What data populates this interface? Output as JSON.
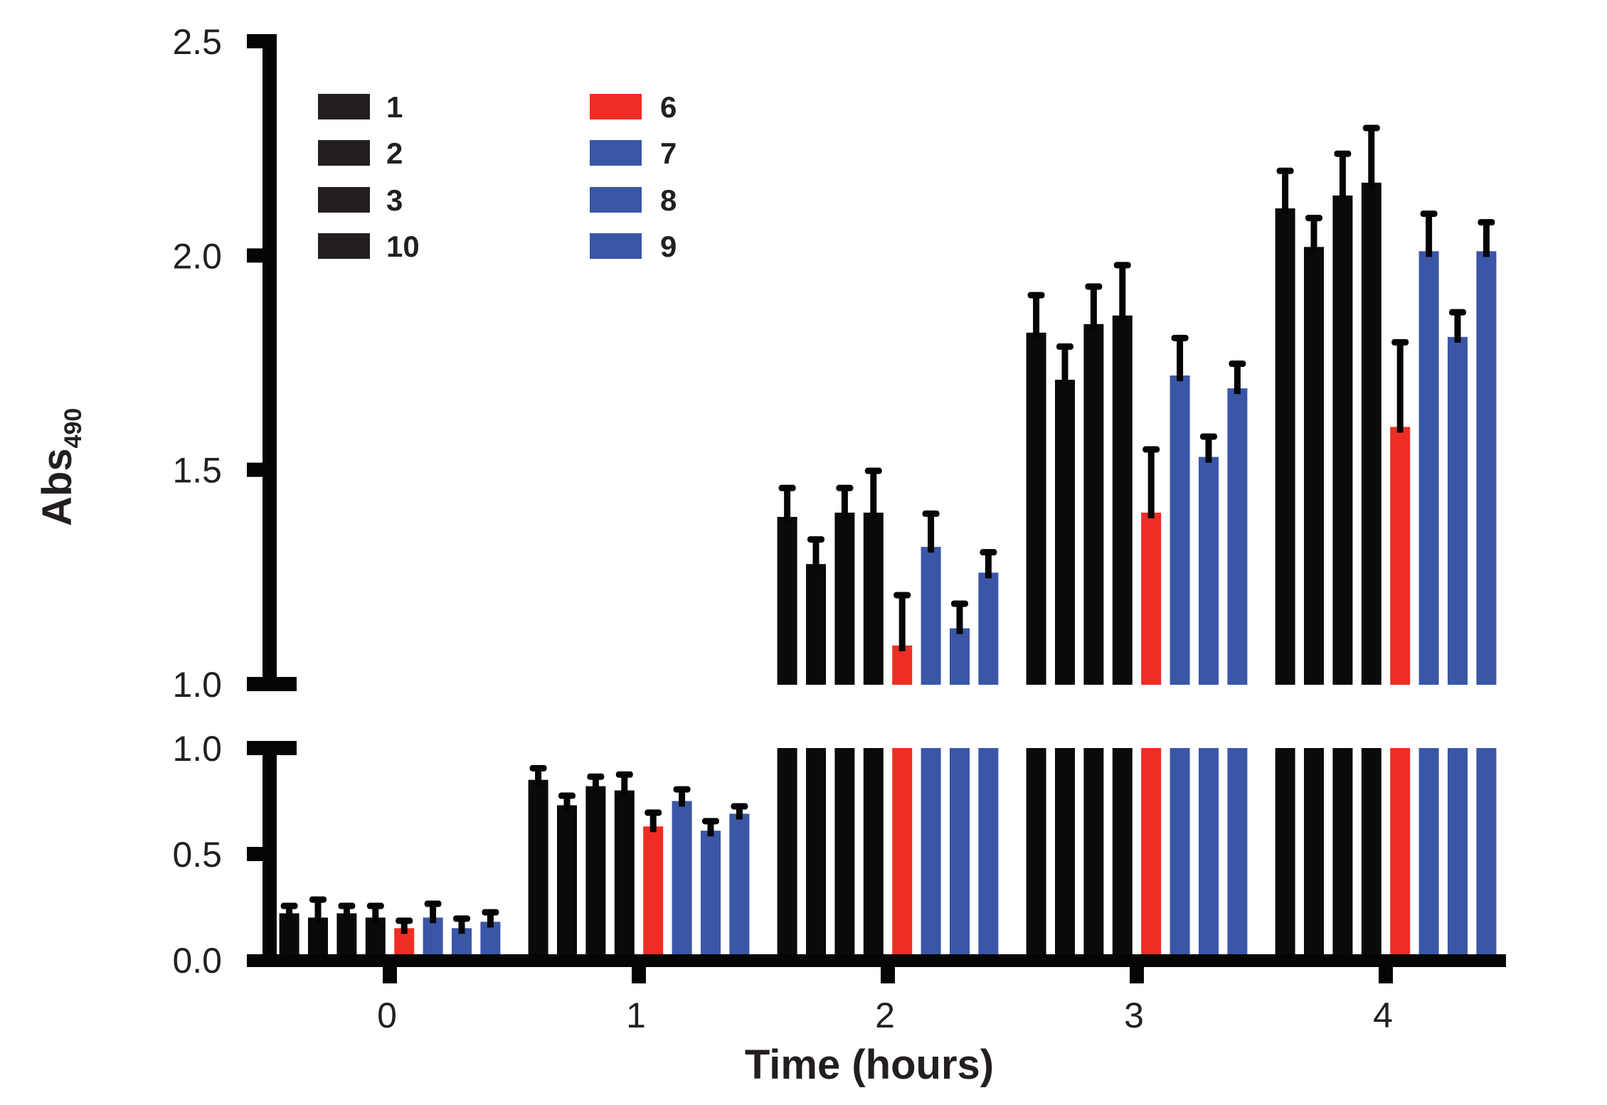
{
  "chart_data": {
    "type": "bar",
    "title": "",
    "xlabel": "Time (hours)",
    "ylabel": "Abs",
    "ylabel_subscript": "490",
    "categories": [
      "0",
      "1",
      "2",
      "3",
      "4"
    ],
    "y_axis_break": true,
    "ylim_lower": [
      0.0,
      1.0
    ],
    "ylim_upper": [
      1.0,
      2.5
    ],
    "yticks_lower": [
      "0.0",
      "0.5",
      "1.0"
    ],
    "yticks_upper": [
      "1.0",
      "1.5",
      "2.0",
      "2.5"
    ],
    "grid": false,
    "legend_position": "top-left",
    "colors": {
      "black": "#0a0a0a",
      "red": "#ee2e24",
      "blue": "#3a56a6",
      "axis": "#050505",
      "text": "#231f20"
    },
    "series": [
      {
        "name": "1",
        "color": "#0a0a0a",
        "values": [
          0.22,
          0.85,
          1.39,
          1.82,
          2.11
        ],
        "errors": [
          0.04,
          0.06,
          0.07,
          0.09,
          0.09
        ]
      },
      {
        "name": "2",
        "color": "#0a0a0a",
        "values": [
          0.2,
          0.73,
          1.28,
          1.71,
          2.02
        ],
        "errors": [
          0.09,
          0.05,
          0.06,
          0.08,
          0.07
        ]
      },
      {
        "name": "3",
        "color": "#0a0a0a",
        "values": [
          0.22,
          0.82,
          1.4,
          1.84,
          2.14
        ],
        "errors": [
          0.04,
          0.05,
          0.06,
          0.09,
          0.1
        ]
      },
      {
        "name": "10",
        "color": "#0a0a0a",
        "values": [
          0.2,
          0.8,
          1.4,
          1.86,
          2.17
        ],
        "errors": [
          0.06,
          0.08,
          0.1,
          0.12,
          0.13
        ]
      },
      {
        "name": "6",
        "color": "#ee2e24",
        "values": [
          0.15,
          0.63,
          1.09,
          1.4,
          1.6
        ],
        "errors": [
          0.04,
          0.07,
          0.12,
          0.15,
          0.2
        ]
      },
      {
        "name": "7",
        "color": "#3a56a6",
        "values": [
          0.2,
          0.75,
          1.32,
          1.72,
          2.01
        ],
        "errors": [
          0.07,
          0.06,
          0.08,
          0.09,
          0.09
        ]
      },
      {
        "name": "8",
        "color": "#3a56a6",
        "values": [
          0.15,
          0.61,
          1.13,
          1.53,
          1.81
        ],
        "errors": [
          0.05,
          0.05,
          0.06,
          0.05,
          0.06
        ]
      },
      {
        "name": "9",
        "color": "#3a56a6",
        "values": [
          0.18,
          0.69,
          1.26,
          1.69,
          2.01
        ],
        "errors": [
          0.05,
          0.04,
          0.05,
          0.06,
          0.07
        ]
      }
    ],
    "legend": {
      "left_column": [
        "1",
        "2",
        "3",
        "10"
      ],
      "right_column": [
        "6",
        "7",
        "8",
        "9"
      ]
    }
  }
}
